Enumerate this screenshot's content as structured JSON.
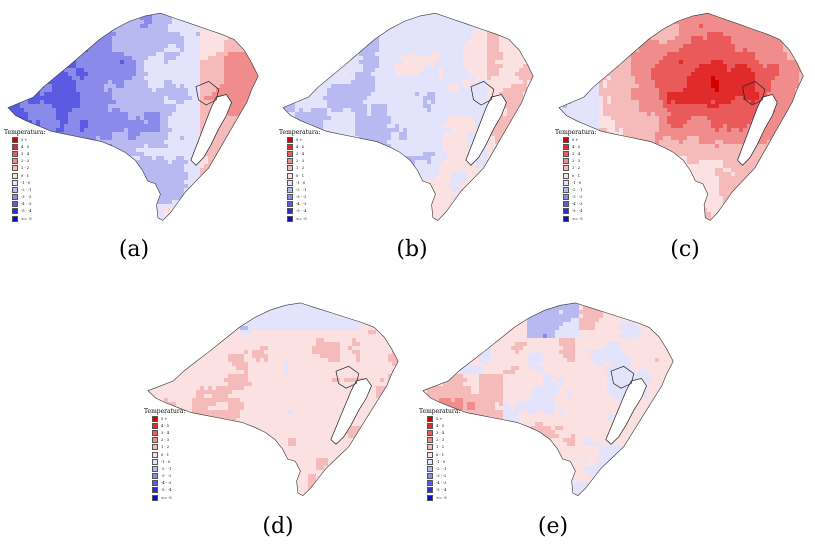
{
  "figure": {
    "legend": {
      "title": "Temperatura:",
      "items": [
        {
          "label": "5 +",
          "color": "#d40000"
        },
        {
          "label": "4 · 5",
          "color": "#e12a2a"
        },
        {
          "label": "3 · 4",
          "color": "#eb5a5a"
        },
        {
          "label": "2 · 3",
          "color": "#f08c8c"
        },
        {
          "label": "1 · 2",
          "color": "#f5baba"
        },
        {
          "label": "0 · 1",
          "color": "#fbe1e1"
        },
        {
          "label": "-1 · 0",
          "color": "#e3e3fb"
        },
        {
          "label": "-2 · -1",
          "color": "#b9b9f2"
        },
        {
          "label": "-3 · -2",
          "color": "#8a8aea"
        },
        {
          "label": "-4 · -3",
          "color": "#5a5ae2"
        },
        {
          "label": "-5 · -4",
          "color": "#2d2dd6"
        },
        {
          "label": "<= -5",
          "color": "#0b0bcc"
        }
      ]
    },
    "panels": [
      {
        "id": "a",
        "caption": "(a)",
        "theme": "cold-west",
        "intensity": 0.9
      },
      {
        "id": "b",
        "caption": "(b)",
        "theme": "cool",
        "intensity": 0.55
      },
      {
        "id": "c",
        "caption": "(c)",
        "theme": "warm-center",
        "intensity": 0.9
      },
      {
        "id": "d",
        "caption": "(d)",
        "theme": "mixed-mild",
        "intensity": 0.4
      },
      {
        "id": "e",
        "caption": "(e)",
        "theme": "mixed",
        "intensity": 0.55
      }
    ]
  }
}
